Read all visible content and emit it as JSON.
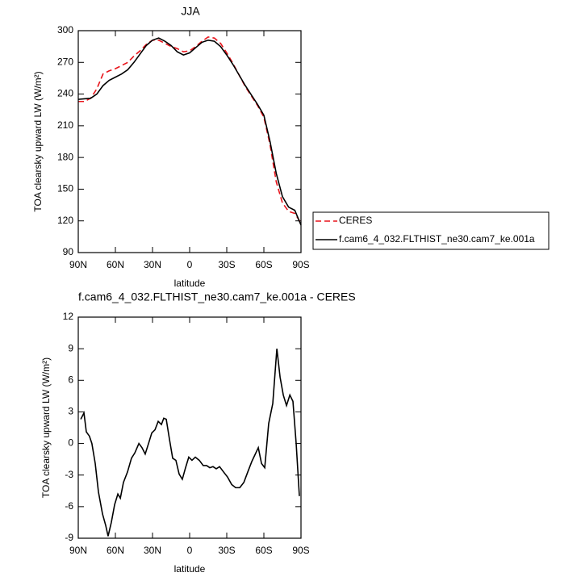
{
  "chart_data": [
    {
      "type": "line",
      "title": "JJA",
      "xlabel": "latitude",
      "ylabel": "TOA clearsky upward LW (W/m²)",
      "x": [
        90,
        85,
        80,
        75,
        70,
        65,
        60,
        55,
        50,
        45,
        40,
        35,
        30,
        25,
        20,
        15,
        10,
        5,
        0,
        -5,
        -10,
        -15,
        -20,
        -25,
        -30,
        -35,
        -40,
        -45,
        -50,
        -55,
        -60,
        -65,
        -70,
        -75,
        -80,
        -85,
        -90
      ],
      "series": [
        {
          "name": "CERES",
          "color": "#e8141b",
          "dash": true,
          "values": [
            233,
            233,
            236,
            245,
            259,
            262,
            264,
            267,
            270,
            276,
            281,
            287,
            291,
            291,
            288,
            285,
            283,
            280,
            281,
            285,
            290,
            294,
            293,
            288,
            279,
            269,
            258,
            247,
            238,
            229,
            218,
            192,
            157,
            137,
            129,
            127,
            118
          ]
        },
        {
          "name": "f.cam6_4_032.FLTHIST_ne30.cam7_ke.001a",
          "color": "#000000",
          "dash": false,
          "values": [
            235,
            235.5,
            236,
            240,
            248,
            253,
            256,
            259,
            263,
            270,
            278,
            286,
            291,
            293,
            290,
            286,
            280,
            277,
            279,
            284,
            289,
            291,
            290,
            285,
            277,
            268,
            258,
            248,
            239,
            230,
            220,
            195,
            165,
            143,
            133,
            130,
            116
          ]
        }
      ],
      "xlim": [
        90,
        -90
      ],
      "ylim": [
        90,
        300
      ],
      "xticks": [
        {
          "value": 90,
          "label": "90N"
        },
        {
          "value": 60,
          "label": "60N"
        },
        {
          "value": 30,
          "label": "30N"
        },
        0,
        {
          "value": -30,
          "label": "30S"
        },
        {
          "value": -60,
          "label": "60S"
        },
        {
          "value": -90,
          "label": "90S"
        }
      ],
      "yticks": [
        90,
        120,
        150,
        180,
        210,
        240,
        270,
        300
      ],
      "legend": "outside-right"
    },
    {
      "type": "line",
      "title": "f.cam6_4_032.FLTHIST_ne30.cam7_ke.001a - CERES",
      "xlabel": "latitude",
      "ylabel": "TOA clearsky upward LW (W/m²)",
      "x": [
        88,
        85.4,
        83.5,
        81,
        79,
        76.3,
        73.7,
        70.4,
        67.8,
        65.9,
        63.3,
        60.6,
        58,
        56,
        53.5,
        50.2,
        47,
        44.3,
        41,
        38.5,
        35.9,
        33.2,
        30.6,
        28,
        25.4,
        22.8,
        20.9,
        18.9,
        16.3,
        13.7,
        11.1,
        8.5,
        5.9,
        3.3,
        0.7,
        -1.9,
        -4.6,
        -7.8,
        -11,
        -13.7,
        -16.3,
        -18.9,
        -21.5,
        -24.2,
        -27.4,
        -30.7,
        -34,
        -37.2,
        -40.5,
        -43.8,
        -47,
        -50.3,
        -53.5,
        -55.5,
        -58.1,
        -60.7,
        -63.9,
        -67.2,
        -70.5,
        -73.1,
        -75.7,
        -78.3,
        -81,
        -83.5,
        -86.1,
        -88.7
      ],
      "values": [
        2.3,
        2.9,
        1.1,
        0.7,
        0,
        -1.9,
        -4.6,
        -6.7,
        -7.8,
        -8.8,
        -7.5,
        -5.8,
        -4.8,
        -5.2,
        -3.7,
        -2.7,
        -1.4,
        -0.9,
        0,
        -0.4,
        -1,
        0,
        1,
        1.3,
        2.1,
        1.8,
        2.4,
        2.3,
        0.4,
        -1.4,
        -1.6,
        -2.9,
        -3.4,
        -2.3,
        -1.3,
        -1.6,
        -1.3,
        -1.6,
        -2.1,
        -2.1,
        -2.3,
        -2.2,
        -2.4,
        -2.2,
        -2.7,
        -3.2,
        -3.9,
        -4.2,
        -4.2,
        -3.7,
        -2.7,
        -1.7,
        -0.9,
        -0.4,
        -1.9,
        -2.3,
        1.9,
        3.8,
        9,
        6.3,
        4.6,
        3.6,
        4.6,
        4,
        0,
        -5
      ],
      "color": "#000000",
      "xlim": [
        90,
        -90
      ],
      "ylim": [
        -9,
        12
      ],
      "xticks": [
        {
          "value": 90,
          "label": "90N"
        },
        {
          "value": 60,
          "label": "60N"
        },
        {
          "value": 30,
          "label": "30N"
        },
        0,
        {
          "value": -30,
          "label": "30S"
        },
        {
          "value": -60,
          "label": "60S"
        },
        {
          "value": -90,
          "label": "90S"
        }
      ],
      "yticks": [
        -9,
        -6,
        -3,
        0,
        3,
        6,
        9,
        12
      ]
    }
  ]
}
